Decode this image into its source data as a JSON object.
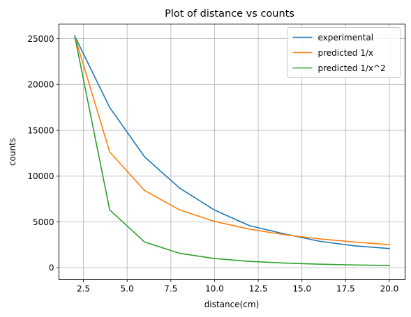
{
  "chart_data": {
    "type": "line",
    "title": "Plot of distance vs counts",
    "xlabel": "distance(cm)",
    "ylabel": "counts",
    "x": [
      2,
      4,
      6,
      8,
      10,
      12,
      14,
      16,
      18,
      20
    ],
    "xlim": [
      1.1,
      20.9
    ],
    "ylim": [
      -1300,
      26600
    ],
    "xticks": [
      2.5,
      5.0,
      7.5,
      10.0,
      12.5,
      15.0,
      17.5,
      20.0
    ],
    "xtick_labels": [
      "2.5",
      "5.0",
      "7.5",
      "10.0",
      "12.5",
      "15.0",
      "17.5",
      "20.0"
    ],
    "yticks": [
      0,
      5000,
      10000,
      15000,
      20000,
      25000
    ],
    "ytick_labels": [
      "0",
      "5000",
      "10000",
      "15000",
      "20000",
      "25000"
    ],
    "grid": true,
    "legend_position": "top-right",
    "series": [
      {
        "name": "experimental",
        "color": "#1f77b4",
        "values": [
          25300,
          17500,
          12100,
          8700,
          6300,
          4600,
          3700,
          2900,
          2400,
          2100
        ]
      },
      {
        "name": "predicted 1/x",
        "color": "#ff7f0e",
        "values": [
          25300,
          12650,
          8433,
          6325,
          5060,
          4217,
          3614,
          3163,
          2811,
          2530
        ]
      },
      {
        "name": "predicted 1/x^2",
        "color": "#2ca02c",
        "values": [
          25300,
          6325,
          2811,
          1581,
          1012,
          703,
          516,
          395,
          312,
          253
        ]
      }
    ]
  }
}
